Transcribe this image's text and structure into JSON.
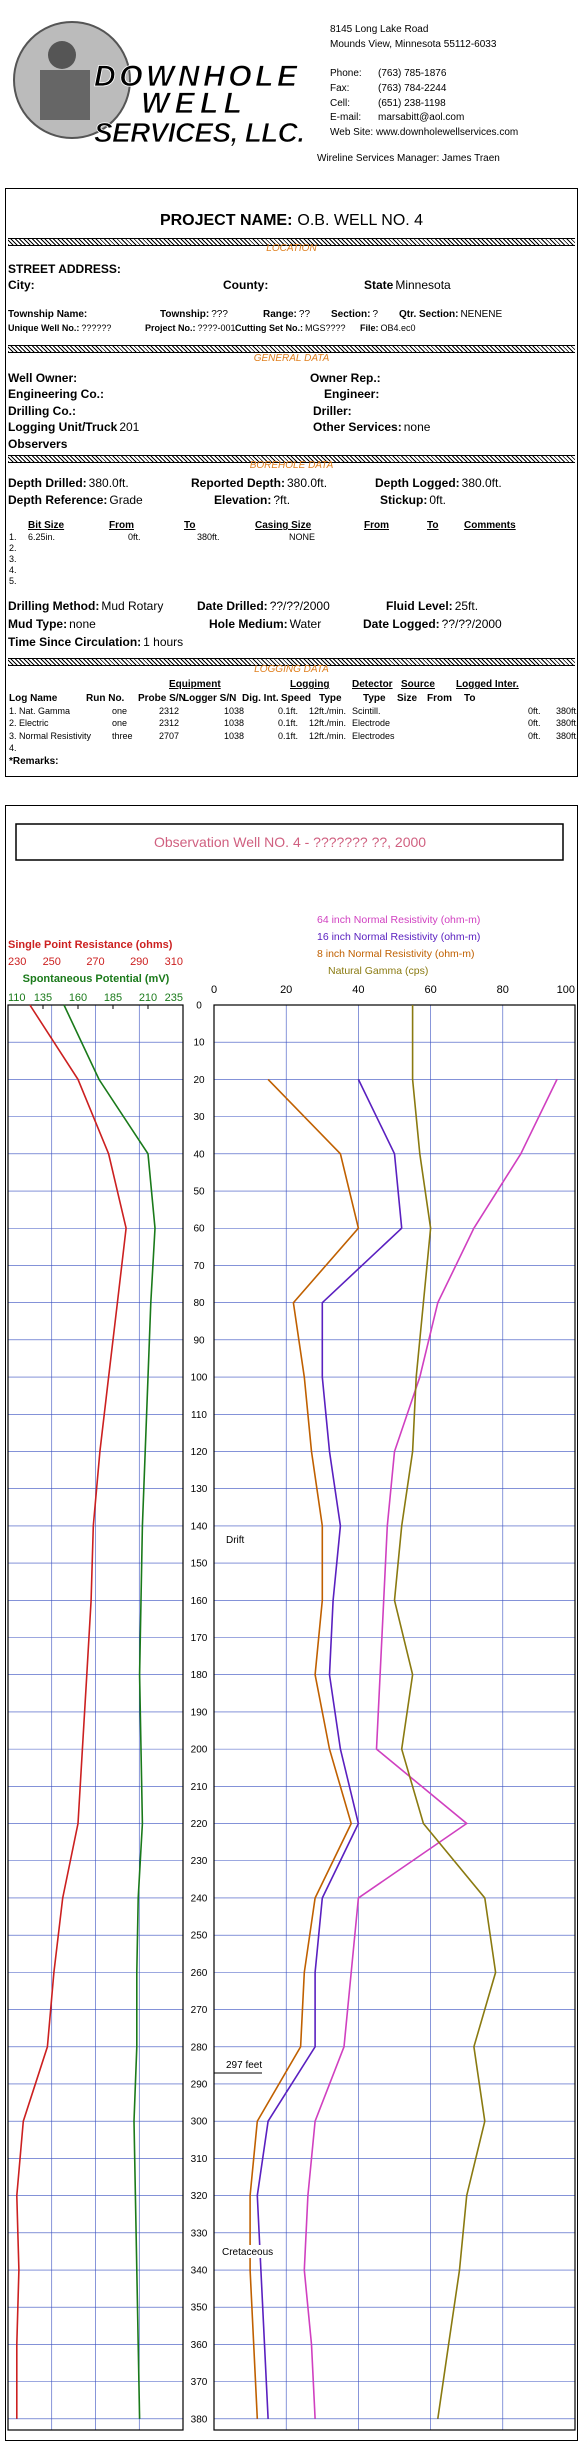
{
  "company": {
    "logo": [
      "DOWNHOLE",
      "WELL",
      "SERVICES, LLC."
    ],
    "address": [
      "8145 Long Lake Road",
      "Mounds View, Minnesota  55112-6033"
    ],
    "contacts": [
      [
        "Phone:",
        "(763) 785-1876"
      ],
      [
        "Fax:",
        "(763) 784-2244"
      ],
      [
        "Cell:",
        "(651) 238-1198"
      ],
      [
        "E-mail:",
        "marsabitt@aol.com"
      ]
    ],
    "website": "Web Site: www.downholewellservices.com",
    "manager": "Wireline Services Manager: James Traen"
  },
  "project": {
    "label": "PROJECT NAME:",
    "value": "O.B. WELL NO. 4"
  },
  "sections": [
    "LOCATION",
    "GENERAL DATA",
    "BOREHOLE DATA",
    "LOGGING DATA"
  ],
  "location": {
    "street": "STREET ADDRESS:",
    "city": "City:",
    "county": "County:",
    "state": [
      "State",
      "Minnesota"
    ],
    "township_name": "Township Name:",
    "township": [
      "Township:",
      "???"
    ],
    "range": [
      "Range:",
      "??"
    ],
    "section": [
      "Section:",
      "?"
    ],
    "qtr_section": [
      "Qtr. Section:",
      "NENENE"
    ],
    "unique_well": [
      "Unique Well No.:",
      "??????"
    ],
    "project_no": [
      "Project No.:",
      "????-001"
    ],
    "cutting_set": [
      "Cutting Set No.:",
      "MGS????"
    ],
    "file": [
      "File:",
      "OB4.ec0"
    ]
  },
  "general": {
    "well_owner": "Well Owner:",
    "owner_rep": "Owner Rep.:",
    "engineering": "Engineering Co.:",
    "engineer": "Engineer:",
    "drilling": "Drilling Co.:",
    "driller": "Driller:",
    "logging_unit": [
      "Logging Unit/Truck",
      "201"
    ],
    "other_services": [
      "Other Services:",
      "none"
    ],
    "observers": "Observers"
  },
  "borehole": {
    "depth_drilled": [
      "Depth Drilled:",
      "380.0ft."
    ],
    "reported": [
      "Reported Depth:",
      "380.0ft."
    ],
    "depth_logged": [
      "Depth Logged:",
      "380.0ft."
    ],
    "reference": [
      "Depth Reference:",
      "Grade"
    ],
    "elevation": [
      "Elevation:",
      "?ft."
    ],
    "stickup": [
      "Stickup:",
      "0ft."
    ],
    "bit_table": {
      "headers": [
        "Bit Size",
        "From",
        "To",
        "Casing Size",
        "From",
        "To",
        "Comments"
      ],
      "rows": [
        [
          "1.",
          "6.25in.",
          "0ft.",
          "380ft.",
          "NONE"
        ],
        [
          "2."
        ],
        [
          "3."
        ],
        [
          "4."
        ],
        [
          "5."
        ]
      ]
    },
    "drilling_method": [
      "Drilling Method:",
      "Mud Rotary"
    ],
    "date_drilled": [
      "Date Drilled:",
      "??/??/2000"
    ],
    "fluid_level": [
      "Fluid Level:",
      "25ft."
    ],
    "mud_type": [
      "Mud Type:",
      "none"
    ],
    "hole_medium": [
      "Hole Medium:",
      "Water"
    ],
    "date_logged": [
      "Date Logged:",
      "??/??/2000"
    ],
    "circulation": [
      "Time Since Circulation:",
      "1 hours"
    ]
  },
  "logging": {
    "groups": [
      "Equipment",
      "Logging",
      "Detector",
      "Source",
      "Logged Inter."
    ],
    "headers": [
      "Log Name",
      "Run No.",
      "Probe S/N",
      "Logger S/N",
      "Dig. Int.",
      "Speed",
      "Type",
      "Type",
      "Size",
      "From",
      "To"
    ],
    "rows": [
      [
        "1. Nat. Gamma",
        "one",
        "2312",
        "1038",
        "0.1ft.",
        "12ft./min.",
        "Scintill.",
        "0ft.",
        "380ft."
      ],
      [
        "2. Electric",
        "one",
        "2312",
        "1038",
        "0.1ft.",
        "12ft./min.",
        "Electrode",
        "0ft.",
        "380ft."
      ],
      [
        "3. Normal Resistivity",
        "three",
        "2707",
        "1038",
        "0.1ft.",
        "12ft./min.",
        "Electrodes",
        "0ft.",
        "380ft."
      ],
      [
        "4."
      ]
    ],
    "remarks": "*Remarks:"
  },
  "chart_data": [
    {
      "type": "line",
      "title": "Observation Well NO. 4 - ??????? ??, 2000",
      "x": [
        0,
        20,
        40,
        60,
        80,
        100,
        120,
        140,
        160,
        180,
        200,
        220,
        240,
        260,
        280,
        300,
        320,
        340,
        360,
        380
      ],
      "xlim": [
        0,
        383
      ],
      "xticks": [
        0,
        10,
        20,
        30,
        40,
        50,
        60,
        70,
        80,
        90,
        100,
        110,
        120,
        130,
        140,
        150,
        160,
        170,
        180,
        190,
        200,
        210,
        220,
        230,
        240,
        250,
        260,
        270,
        280,
        290,
        300,
        310,
        320,
        330,
        340,
        350,
        360,
        370,
        380
      ],
      "ylim": [
        230,
        310
      ],
      "yticks": [
        230,
        250,
        270,
        290,
        310
      ],
      "y2lim": [
        110,
        235
      ],
      "y2ticks": [
        110,
        135,
        160,
        185,
        210,
        235
      ],
      "grid": true,
      "series": [
        {
          "name": "Single Point Resistance (ohms)",
          "color": "#cc2020",
          "values": [
            240,
            262,
            276,
            284,
            280,
            276,
            272,
            269,
            268,
            266,
            264,
            262,
            255,
            251,
            248,
            237,
            234,
            235,
            234,
            234
          ]
        },
        {
          "name": "Spontaneous Potential (mV)",
          "color": "#1a7a1a",
          "axis": "y2",
          "values": [
            150,
            175,
            210,
            215,
            212,
            210,
            208,
            206,
            205,
            204,
            205,
            206,
            203,
            202,
            202,
            200,
            201,
            202,
            203,
            204
          ]
        }
      ]
    },
    {
      "type": "line",
      "x": [
        0,
        20,
        40,
        60,
        80,
        100,
        120,
        140,
        160,
        180,
        200,
        220,
        240,
        260,
        280,
        300,
        320,
        340,
        360,
        380
      ],
      "xlim": [
        0,
        383
      ],
      "ylim": [
        0,
        100
      ],
      "yticks": [
        0,
        20,
        40,
        60,
        80,
        100
      ],
      "grid": true,
      "series": [
        {
          "name": "64 inch Normal Resistivity (ohm-m)",
          "color": "#d040c0",
          "values": [
            null,
            95,
            85,
            72,
            62,
            57,
            50,
            48,
            47,
            46,
            45,
            70,
            40,
            38,
            36,
            28,
            26,
            25,
            27,
            28
          ]
        },
        {
          "name": "16 inch Normal Resistivity (ohm-m)",
          "color": "#5a20c0",
          "values": [
            null,
            40,
            50,
            52,
            30,
            30,
            32,
            35,
            33,
            32,
            35,
            40,
            30,
            28,
            28,
            15,
            12,
            13,
            14,
            15
          ]
        },
        {
          "name": "8 inch Normal Resistivity (ohm-m)",
          "color": "#c06000",
          "values": [
            null,
            15,
            35,
            40,
            22,
            25,
            27,
            30,
            30,
            28,
            32,
            38,
            28,
            25,
            24,
            12,
            10,
            10,
            11,
            12
          ]
        },
        {
          "name": "Natural Gamma (cps)",
          "color": "#8a7a10",
          "values": [
            55,
            55,
            57,
            60,
            58,
            56,
            55,
            52,
            50,
            55,
            52,
            58,
            75,
            78,
            72,
            75,
            70,
            68,
            65,
            62
          ]
        }
      ],
      "annotations": [
        "Drift",
        "297 feet",
        "Cretaceous"
      ]
    }
  ]
}
